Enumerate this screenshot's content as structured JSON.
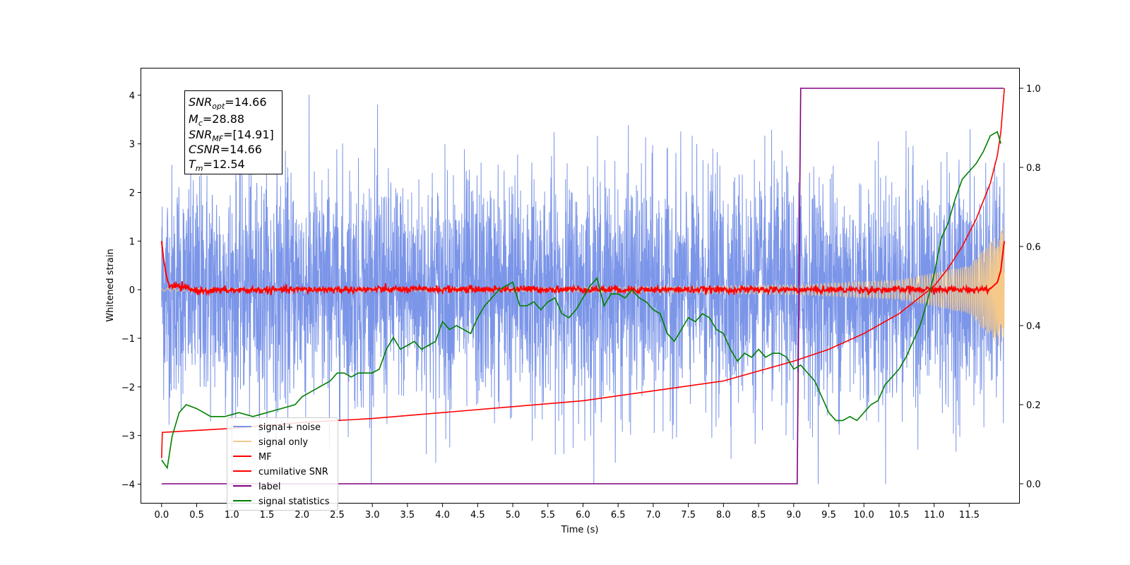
{
  "chart_data": {
    "type": "line",
    "xlabel": "Time (s)",
    "ylabel": "Whitened strain",
    "x_tick_labels": [
      "0.0",
      "0.5",
      "1.0",
      "1.5",
      "2.0",
      "2.5",
      "3.0",
      "3.5",
      "4.0",
      "4.5",
      "5.0",
      "5.5",
      "6.0",
      "6.5",
      "7.0",
      "7.5",
      "8.0",
      "8.5",
      "9.0",
      "9.5",
      "10.0",
      "10.5",
      "11.0",
      "11.5"
    ],
    "y_tick_labels": [
      "−4",
      "−3",
      "−2",
      "−1",
      "0",
      "1",
      "2",
      "3",
      "4"
    ],
    "y2_tick_labels": [
      "0.0",
      "0.2",
      "0.4",
      "0.6",
      "0.8",
      "1.0"
    ],
    "xlim": [
      -0.29,
      12.22
    ],
    "ylim": [
      -4.4,
      4.55
    ],
    "y2lim": [
      -0.05,
      1.05
    ],
    "grid": false,
    "legend_position": "lower-left",
    "annotation": {
      "snr_opt": {
        "sym": "SNR",
        "sub": "opt",
        "value": "=14.66"
      },
      "mc": {
        "sym": "M",
        "sub": "c",
        "value": "=28.88"
      },
      "snr_mf": {
        "sym": "SNR",
        "sub": "MF",
        "value": "=[14.91]"
      },
      "csnr": {
        "sym": "CSNR",
        "sub": "",
        "value": "=14.66"
      },
      "tm": {
        "sym": "T",
        "sub": "m",
        "value": "=12.54"
      }
    },
    "series": [
      {
        "name": "signal+ noise",
        "color": "#7b95e8",
        "axis": "left",
        "kind": "noise",
        "amplitude_envelope": {
          "x": [
            0,
            12
          ],
          "y": [
            1.3,
            1.3
          ]
        },
        "range": [
          -4.0,
          4.18
        ]
      },
      {
        "name": "signal only",
        "color": "#f5c98a",
        "axis": "left",
        "kind": "chirp",
        "amplitude_envelope": {
          "x": [
            0,
            6,
            9,
            10.5,
            11.5,
            12
          ],
          "y": [
            0.03,
            0.05,
            0.1,
            0.2,
            0.5,
            1.3
          ]
        }
      },
      {
        "name": "MF",
        "color": "#ff0000",
        "axis": "left",
        "kind": "mf",
        "x": [
          0,
          0.03,
          0.08,
          0.12,
          0.2,
          0.5,
          2,
          5,
          8,
          10,
          11,
          11.5,
          11.8,
          11.9,
          11.95,
          11.99,
          12.0
        ],
        "y": [
          1.0,
          0.6,
          0.2,
          0.05,
          0.08,
          -0.02,
          0.0,
          0.01,
          0.0,
          0.0,
          0.0,
          0.0,
          0.02,
          0.15,
          0.4,
          0.9,
          1.0
        ]
      },
      {
        "name": "cumilative SNR",
        "color": "#ff0000",
        "axis": "right",
        "x": [
          0,
          0.01,
          1,
          2,
          3,
          4,
          5,
          6,
          7,
          8,
          8.5,
          9,
          9.5,
          10,
          10.5,
          11,
          11.2,
          11.4,
          11.6,
          11.8,
          11.9,
          11.95,
          12.0
        ],
        "y": [
          0.065,
          0.13,
          0.14,
          0.155,
          0.165,
          0.18,
          0.195,
          0.21,
          0.235,
          0.26,
          0.285,
          0.31,
          0.34,
          0.38,
          0.43,
          0.5,
          0.545,
          0.6,
          0.67,
          0.76,
          0.83,
          0.89,
          1.0
        ]
      },
      {
        "name": "label",
        "color": "#800080",
        "axis": "right",
        "x": [
          0,
          9.05,
          9.1,
          11.99
        ],
        "y": [
          0,
          0,
          1,
          1
        ]
      },
      {
        "name": "signal statistics",
        "color": "#008000",
        "axis": "right",
        "x": [
          0,
          0.08,
          0.15,
          0.25,
          0.35,
          0.5,
          0.7,
          0.9,
          1.1,
          1.3,
          1.5,
          1.7,
          1.9,
          2.0,
          2.1,
          2.2,
          2.3,
          2.4,
          2.5,
          2.6,
          2.7,
          2.8,
          2.9,
          3.0,
          3.1,
          3.2,
          3.3,
          3.4,
          3.5,
          3.6,
          3.7,
          3.8,
          3.9,
          4.0,
          4.1,
          4.2,
          4.3,
          4.4,
          4.5,
          4.6,
          4.7,
          4.8,
          4.9,
          5.0,
          5.1,
          5.2,
          5.3,
          5.4,
          5.5,
          5.6,
          5.7,
          5.8,
          5.9,
          6.0,
          6.1,
          6.2,
          6.3,
          6.4,
          6.5,
          6.6,
          6.7,
          6.8,
          6.9,
          7.0,
          7.1,
          7.2,
          7.3,
          7.4,
          7.5,
          7.6,
          7.7,
          7.8,
          7.9,
          8.0,
          8.1,
          8.2,
          8.3,
          8.4,
          8.5,
          8.6,
          8.7,
          8.8,
          8.9,
          9.0,
          9.1,
          9.2,
          9.3,
          9.4,
          9.5,
          9.6,
          9.7,
          9.8,
          9.9,
          10.0,
          10.1,
          10.2,
          10.3,
          10.4,
          10.5,
          10.6,
          10.7,
          10.8,
          10.9,
          11.0,
          11.1,
          11.2,
          11.3,
          11.4,
          11.5,
          11.6,
          11.7,
          11.8,
          11.9,
          11.95
        ],
        "y": [
          0.06,
          0.04,
          0.12,
          0.18,
          0.2,
          0.19,
          0.17,
          0.17,
          0.18,
          0.17,
          0.18,
          0.19,
          0.2,
          0.22,
          0.23,
          0.24,
          0.25,
          0.26,
          0.28,
          0.28,
          0.27,
          0.28,
          0.28,
          0.28,
          0.29,
          0.34,
          0.37,
          0.34,
          0.35,
          0.36,
          0.34,
          0.35,
          0.36,
          0.41,
          0.39,
          0.4,
          0.39,
          0.38,
          0.42,
          0.45,
          0.47,
          0.49,
          0.5,
          0.51,
          0.45,
          0.45,
          0.46,
          0.44,
          0.46,
          0.47,
          0.43,
          0.42,
          0.44,
          0.47,
          0.5,
          0.52,
          0.45,
          0.48,
          0.48,
          0.47,
          0.49,
          0.47,
          0.46,
          0.44,
          0.43,
          0.38,
          0.36,
          0.39,
          0.42,
          0.41,
          0.43,
          0.42,
          0.39,
          0.38,
          0.34,
          0.31,
          0.33,
          0.32,
          0.34,
          0.32,
          0.33,
          0.33,
          0.32,
          0.29,
          0.3,
          0.28,
          0.26,
          0.22,
          0.18,
          0.16,
          0.16,
          0.17,
          0.16,
          0.18,
          0.2,
          0.21,
          0.25,
          0.27,
          0.29,
          0.32,
          0.36,
          0.4,
          0.46,
          0.53,
          0.62,
          0.66,
          0.72,
          0.77,
          0.79,
          0.81,
          0.84,
          0.88,
          0.89,
          0.86
        ]
      }
    ]
  }
}
